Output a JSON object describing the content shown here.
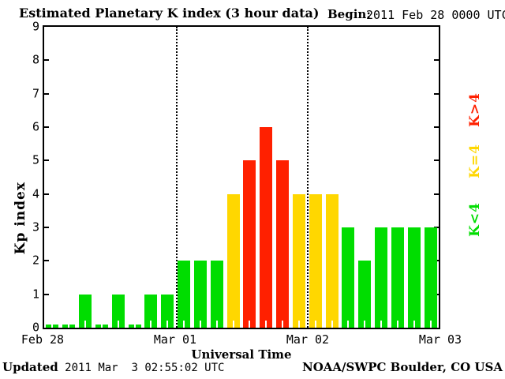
{
  "title": "Estimated Planetary K index (3 hour data)",
  "begin": {
    "label": "Begin:",
    "value": "2011 Feb 28 0000 UTC"
  },
  "footer": {
    "updated_label": "Updated",
    "updated_value": " 2011 Mar  3 02:55:02 UTC",
    "credit": "NOAA/SWPC Boulder, CO USA"
  },
  "legend": [
    {
      "id": "gt4",
      "label": "K>4",
      "color": "#FF2000"
    },
    {
      "id": "eq4",
      "label": "K=4",
      "color": "#FFD700"
    },
    {
      "id": "lt4",
      "label": "K<4",
      "color": "#00DD00"
    }
  ],
  "chart_data": {
    "type": "bar",
    "title": "Estimated Planetary K index (3 hour data)",
    "begin": "2011 Feb 28 0000 UTC",
    "xlabel": "Universal Time",
    "ylabel": "Kp index",
    "ylim": [
      0,
      9
    ],
    "y_ticks": [
      "9",
      "8",
      "7",
      "6",
      "5",
      "4",
      "3",
      "2",
      "1",
      "0"
    ],
    "x_day_labels": [
      "Feb 28",
      "Mar 01",
      "Mar 02",
      "Mar 03"
    ],
    "bars_per_day": 8,
    "interval_hours": 3,
    "values": [
      0,
      0,
      1,
      0,
      1,
      0,
      1,
      1,
      2,
      2,
      2,
      4,
      5,
      6,
      5,
      4,
      4,
      4,
      3,
      2,
      3,
      3,
      3,
      3
    ],
    "color_rule": {
      "below_4": "#00DD00",
      "equal_4": "#FFD700",
      "above_4": "#FF2000"
    },
    "grid": "dotted vertical lines at day boundaries",
    "legend_position": "right, rotated 90"
  }
}
